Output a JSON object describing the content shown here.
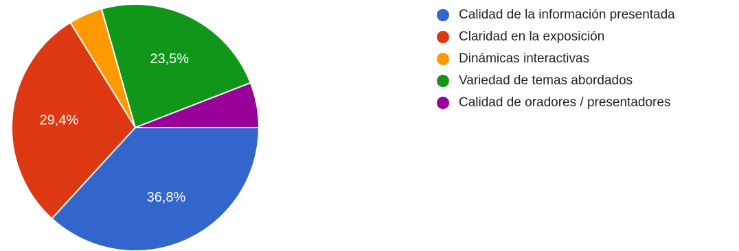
{
  "chart_data": {
    "type": "pie",
    "title": "",
    "legend_position": "right",
    "slices": [
      {
        "label": "Calidad de la información presentada",
        "value": 36.8,
        "display": "36,8%",
        "color": "#3366cc"
      },
      {
        "label": "Claridad en la exposición",
        "value": 29.4,
        "display": "29,4%",
        "color": "#dc3912"
      },
      {
        "label": "Dinámicas interactivas",
        "value": 4.4,
        "display": "",
        "color": "#ff9900"
      },
      {
        "label": "Variedad de temas abordados",
        "value": 23.5,
        "display": "23,5%",
        "color": "#109618"
      },
      {
        "label": "Calidad de oradores / presentadores",
        "value": 5.9,
        "display": "",
        "color": "#990099"
      }
    ]
  }
}
